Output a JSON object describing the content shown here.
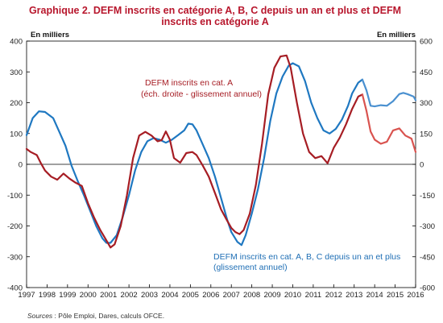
{
  "chart_data": {
    "type": "line",
    "title_lines": [
      "Graphique 2. DEFM inscrits en catégorie A, B, C depuis un an et plus et DEFM",
      "inscrits en catégorie A"
    ],
    "left_axis": {
      "unit": "En milliers",
      "ylim": [
        -400,
        400
      ],
      "ticks": [
        "400",
        "300",
        "200",
        "100",
        "0",
        "-100",
        "-200",
        "-300",
        "-400"
      ]
    },
    "right_axis": {
      "unit": "En milliers",
      "ylim": [
        -600,
        600
      ],
      "ticks": [
        "600",
        "450",
        "300",
        "150",
        "0",
        "-150",
        "-300",
        "-450",
        "-600"
      ]
    },
    "x_axis": {
      "range": [
        1997,
        2016
      ],
      "ticks": [
        "1997",
        "1998",
        "1999",
        "2000",
        "2001",
        "2002",
        "2003",
        "2004",
        "2005",
        "2006",
        "2007",
        "2008",
        "2009",
        "2010",
        "2011",
        "2012",
        "2013",
        "2014",
        "2015",
        "2016"
      ]
    },
    "grid": false,
    "zero_line": true,
    "annotations": {
      "red_line1": "DEFM inscrits en cat. A",
      "red_line2": "(éch. droite - glissement annuel)",
      "blue_line1": "DEFM inscrits en cat. A, B, C depuis un an et plus",
      "blue_line2": "(glissement annuel)"
    },
    "source_label": "Sources",
    "source_text": " : Pôle Emploi, Dares, calculs OFCE.",
    "colors": {
      "title": "#b8172d",
      "red": "#a61d24",
      "red_projection": "#d9534f",
      "blue": "#1f78c1",
      "blue_projection": "#4a90d0",
      "frame": "#000000"
    },
    "series": [
      {
        "axis": "left",
        "color": "#1f78c1",
        "points": [
          [
            1997.0,
            95
          ],
          [
            1997.3,
            150
          ],
          [
            1997.6,
            172
          ],
          [
            1997.9,
            170
          ],
          [
            1998.3,
            150
          ],
          [
            1998.6,
            105
          ],
          [
            1998.9,
            60
          ],
          [
            1999.2,
            -5
          ],
          [
            1999.5,
            -55
          ],
          [
            1999.8,
            -100
          ],
          [
            2000.1,
            -150
          ],
          [
            2000.4,
            -200
          ],
          [
            2000.7,
            -240
          ],
          [
            2000.9,
            -255
          ],
          [
            2001.1,
            -255
          ],
          [
            2001.4,
            -230
          ],
          [
            2001.7,
            -170
          ],
          [
            2002.0,
            -100
          ],
          [
            2002.3,
            -20
          ],
          [
            2002.6,
            40
          ],
          [
            2002.9,
            75
          ],
          [
            2003.2,
            85
          ],
          [
            2003.5,
            80
          ],
          [
            2003.8,
            70
          ],
          [
            2004.1,
            80
          ],
          [
            2004.4,
            95
          ],
          [
            2004.7,
            110
          ],
          [
            2004.9,
            132
          ],
          [
            2005.1,
            130
          ],
          [
            2005.3,
            110
          ],
          [
            2005.6,
            65
          ],
          [
            2005.9,
            20
          ],
          [
            2006.2,
            -40
          ],
          [
            2006.5,
            -110
          ],
          [
            2006.8,
            -180
          ],
          [
            2007.0,
            -220
          ],
          [
            2007.3,
            -252
          ],
          [
            2007.5,
            -262
          ],
          [
            2007.7,
            -230
          ],
          [
            2008.0,
            -160
          ],
          [
            2008.3,
            -80
          ],
          [
            2008.6,
            20
          ],
          [
            2008.9,
            140
          ],
          [
            2009.2,
            230
          ],
          [
            2009.5,
            285
          ],
          [
            2009.8,
            320
          ],
          [
            2010.0,
            328
          ],
          [
            2010.3,
            318
          ],
          [
            2010.6,
            270
          ],
          [
            2010.9,
            200
          ],
          [
            2011.2,
            150
          ],
          [
            2011.5,
            110
          ],
          [
            2011.8,
            100
          ],
          [
            2012.1,
            115
          ],
          [
            2012.4,
            145
          ],
          [
            2012.7,
            190
          ],
          [
            2012.9,
            230
          ],
          [
            2013.2,
            265
          ],
          [
            2013.4,
            275
          ]
        ]
      },
      {
        "axis": "left",
        "color": "#4a90d0",
        "points": [
          [
            2013.4,
            275
          ],
          [
            2013.6,
            240
          ],
          [
            2013.8,
            190
          ],
          [
            2014.0,
            188
          ],
          [
            2014.3,
            192
          ],
          [
            2014.6,
            190
          ],
          [
            2014.9,
            205
          ],
          [
            2015.2,
            228
          ],
          [
            2015.4,
            232
          ],
          [
            2015.6,
            228
          ],
          [
            2015.9,
            220
          ],
          [
            2016.0,
            208
          ]
        ]
      },
      {
        "axis": "right",
        "color": "#a61d24",
        "points": [
          [
            1997.0,
            75
          ],
          [
            1997.2,
            60
          ],
          [
            1997.5,
            45
          ],
          [
            1997.7,
            5
          ],
          [
            1997.9,
            -30
          ],
          [
            1998.2,
            -60
          ],
          [
            1998.5,
            -75
          ],
          [
            1998.8,
            -45
          ],
          [
            1999.1,
            -70
          ],
          [
            1999.4,
            -90
          ],
          [
            1999.7,
            -105
          ],
          [
            2000.0,
            -190
          ],
          [
            2000.3,
            -260
          ],
          [
            2000.6,
            -320
          ],
          [
            2000.9,
            -370
          ],
          [
            2001.1,
            -405
          ],
          [
            2001.3,
            -390
          ],
          [
            2001.6,
            -300
          ],
          [
            2001.9,
            -150
          ],
          [
            2002.2,
            30
          ],
          [
            2002.5,
            140
          ],
          [
            2002.8,
            158
          ],
          [
            2003.1,
            140
          ],
          [
            2003.4,
            112
          ],
          [
            2003.6,
            118
          ],
          [
            2003.8,
            160
          ],
          [
            2004.0,
            120
          ],
          [
            2004.2,
            30
          ],
          [
            2004.5,
            8
          ],
          [
            2004.8,
            55
          ],
          [
            2005.1,
            60
          ],
          [
            2005.3,
            45
          ],
          [
            2005.6,
            -5
          ],
          [
            2005.9,
            -60
          ],
          [
            2006.2,
            -140
          ],
          [
            2006.5,
            -220
          ],
          [
            2006.8,
            -275
          ],
          [
            2007.0,
            -310
          ],
          [
            2007.2,
            -330
          ],
          [
            2007.4,
            -340
          ],
          [
            2007.6,
            -320
          ],
          [
            2007.9,
            -240
          ],
          [
            2008.2,
            -100
          ],
          [
            2008.5,
            100
          ],
          [
            2008.8,
            340
          ],
          [
            2009.1,
            470
          ],
          [
            2009.4,
            525
          ],
          [
            2009.7,
            530
          ],
          [
            2009.9,
            470
          ],
          [
            2010.2,
            300
          ],
          [
            2010.5,
            150
          ],
          [
            2010.8,
            60
          ],
          [
            2011.1,
            30
          ],
          [
            2011.4,
            40
          ],
          [
            2011.7,
            5
          ],
          [
            2012.0,
            80
          ],
          [
            2012.3,
            130
          ],
          [
            2012.6,
            195
          ],
          [
            2012.9,
            270
          ],
          [
            2013.2,
            330
          ],
          [
            2013.4,
            340
          ]
        ]
      },
      {
        "axis": "right",
        "color": "#d9534f",
        "points": [
          [
            2013.4,
            340
          ],
          [
            2013.6,
            260
          ],
          [
            2013.8,
            160
          ],
          [
            2014.0,
            120
          ],
          [
            2014.3,
            100
          ],
          [
            2014.6,
            110
          ],
          [
            2014.9,
            165
          ],
          [
            2015.2,
            175
          ],
          [
            2015.5,
            140
          ],
          [
            2015.8,
            125
          ],
          [
            2016.0,
            60
          ]
        ]
      }
    ]
  }
}
